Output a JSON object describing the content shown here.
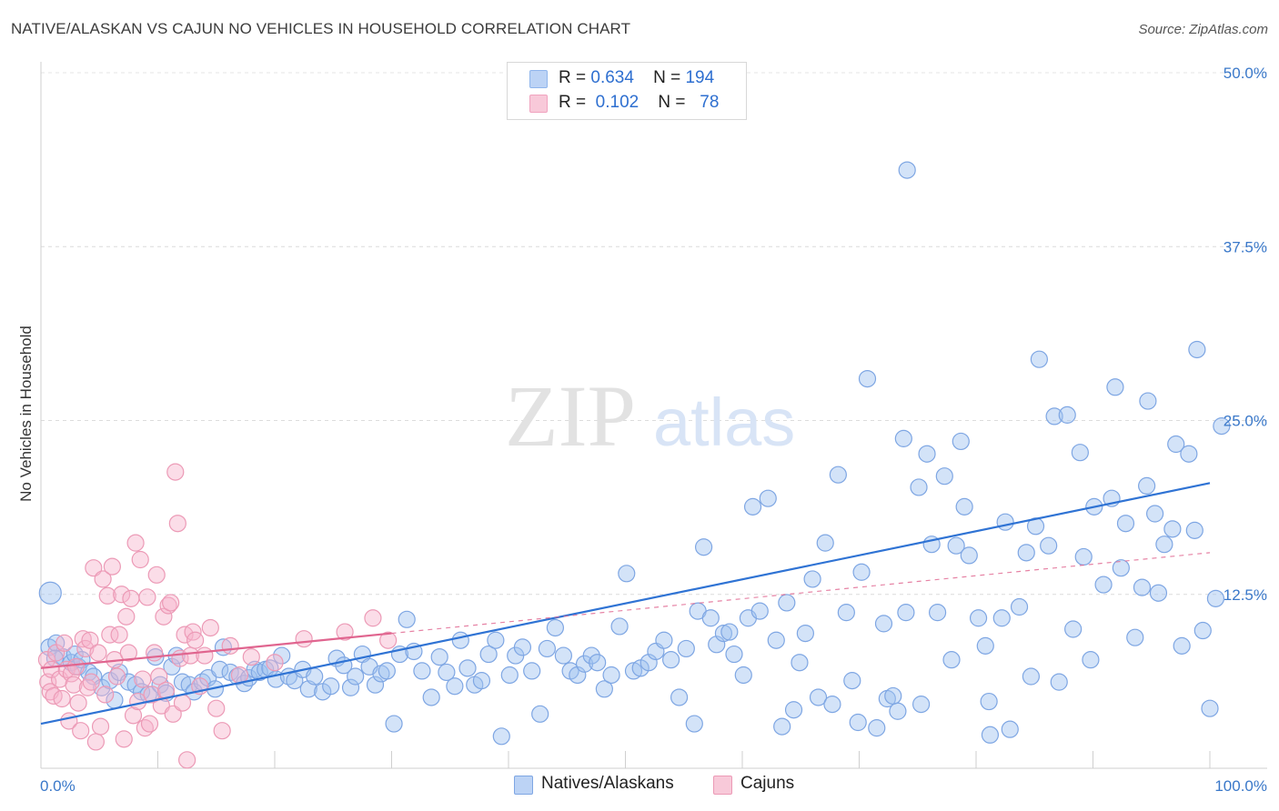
{
  "title": "NATIVE/ALASKAN VS CAJUN NO VEHICLES IN HOUSEHOLD CORRELATION CHART",
  "source": "Source: ZipAtlas.com",
  "watermark": {
    "part1": "ZIP",
    "part2": "atlas"
  },
  "legend": {
    "rows": [
      {
        "r_label": "R =",
        "r": "0.634",
        "n_label": "N =",
        "n": "194",
        "color": "#8fb5ec",
        "fill": "#bcd3f5"
      },
      {
        "r_label": "R =",
        "r": "0.102",
        "n_label": "N =",
        "n": "78",
        "color": "#f0a3bf",
        "fill": "#f8c9d9"
      }
    ]
  },
  "bottom_legend": [
    {
      "label": "Natives/Alaskans",
      "fill": "#bcd3f5",
      "stroke": "#7ea6e3"
    },
    {
      "label": "Cajuns",
      "fill": "#f8c9d9",
      "stroke": "#ec9ab6"
    }
  ],
  "chart_data": {
    "type": "scatter",
    "ylabel": "No Vehicles in Household",
    "xlim": [
      0,
      100
    ],
    "ylim": [
      0,
      50
    ],
    "y_ticks": [
      {
        "v": 12.5,
        "label": "12.5%"
      },
      {
        "v": 25,
        "label": "25.0%"
      },
      {
        "v": 37.5,
        "label": "37.5%"
      },
      {
        "v": 50,
        "label": "50.0%"
      }
    ],
    "x_ticks": [
      {
        "v": 0,
        "label": "0.0%"
      },
      {
        "v": 100,
        "label": "100.0%"
      }
    ],
    "grid": true,
    "series": [
      {
        "name": "Natives/Alaskans",
        "stroke": "#7ea6e3",
        "fill": "rgba(158,192,240,0.45)",
        "trend": {
          "x": [
            0,
            100
          ],
          "y": [
            3.2,
            20.5
          ],
          "color": "#2f73d4",
          "dashed_beyond": null
        },
        "points": [
          [
            0.8,
            12.6
          ],
          [
            0.7,
            8.7
          ],
          [
            1.3,
            9.0
          ],
          [
            1.9,
            8.0
          ],
          [
            1.2,
            7.9
          ],
          [
            2.6,
            7.6
          ],
          [
            2.9,
            8.2
          ],
          [
            3.2,
            7.3
          ],
          [
            3.5,
            7.8
          ],
          [
            4.1,
            6.9
          ],
          [
            4.5,
            6.6
          ],
          [
            5.2,
            5.8
          ],
          [
            5.9,
            6.3
          ],
          [
            6.3,
            4.9
          ],
          [
            6.7,
            6.9
          ],
          [
            7.5,
            6.2
          ],
          [
            8.1,
            6.0
          ],
          [
            8.6,
            5.5
          ],
          [
            9.2,
            5.3
          ],
          [
            9.8,
            8.0
          ],
          [
            10.2,
            6.0
          ],
          [
            10.7,
            5.4
          ],
          [
            11.2,
            7.3
          ],
          [
            11.6,
            8.1
          ],
          [
            12.1,
            6.2
          ],
          [
            12.7,
            6.0
          ],
          [
            13.1,
            5.5
          ],
          [
            13.8,
            6.2
          ],
          [
            14.3,
            6.5
          ],
          [
            14.9,
            5.7
          ],
          [
            15.3,
            7.1
          ],
          [
            15.6,
            8.7
          ],
          [
            16.2,
            6.9
          ],
          [
            16.8,
            6.6
          ],
          [
            17.4,
            6.1
          ],
          [
            17.8,
            6.5
          ],
          [
            18.3,
            7.1
          ],
          [
            18.7,
            6.9
          ],
          [
            19.2,
            7.1
          ],
          [
            19.6,
            7.2
          ],
          [
            20.1,
            6.4
          ],
          [
            20.6,
            8.1
          ],
          [
            21.2,
            6.6
          ],
          [
            21.7,
            6.3
          ],
          [
            22.4,
            7.1
          ],
          [
            22.9,
            5.7
          ],
          [
            23.4,
            6.6
          ],
          [
            24.1,
            5.5
          ],
          [
            24.8,
            5.9
          ],
          [
            25.3,
            7.9
          ],
          [
            25.9,
            7.4
          ],
          [
            26.5,
            5.8
          ],
          [
            26.9,
            6.6
          ],
          [
            27.5,
            8.2
          ],
          [
            28.1,
            7.3
          ],
          [
            28.6,
            6.0
          ],
          [
            29.1,
            6.8
          ],
          [
            29.6,
            7.0
          ],
          [
            30.2,
            3.2
          ],
          [
            30.7,
            8.2
          ],
          [
            31.3,
            10.7
          ],
          [
            31.9,
            8.4
          ],
          [
            32.6,
            7.0
          ],
          [
            33.4,
            5.1
          ],
          [
            34.1,
            8.0
          ],
          [
            34.7,
            6.9
          ],
          [
            35.4,
            5.9
          ],
          [
            35.9,
            9.2
          ],
          [
            36.5,
            7.2
          ],
          [
            37.1,
            6.0
          ],
          [
            37.7,
            6.3
          ],
          [
            38.3,
            8.2
          ],
          [
            38.9,
            9.2
          ],
          [
            39.4,
            2.3
          ],
          [
            40.1,
            6.7
          ],
          [
            40.6,
            8.1
          ],
          [
            41.2,
            8.7
          ],
          [
            42.0,
            7.0
          ],
          [
            42.7,
            3.9
          ],
          [
            43.3,
            8.6
          ],
          [
            44.0,
            10.1
          ],
          [
            44.7,
            8.1
          ],
          [
            45.3,
            7.0
          ],
          [
            45.9,
            6.7
          ],
          [
            46.5,
            7.5
          ],
          [
            47.1,
            8.1
          ],
          [
            47.6,
            7.6
          ],
          [
            48.2,
            5.7
          ],
          [
            48.8,
            6.7
          ],
          [
            49.5,
            10.2
          ],
          [
            50.1,
            14.0
          ],
          [
            50.7,
            7.0
          ],
          [
            51.3,
            7.2
          ],
          [
            52.0,
            7.6
          ],
          [
            52.6,
            8.4
          ],
          [
            53.3,
            9.2
          ],
          [
            53.9,
            7.8
          ],
          [
            54.6,
            5.1
          ],
          [
            55.2,
            8.6
          ],
          [
            55.9,
            3.2
          ],
          [
            56.2,
            11.3
          ],
          [
            56.7,
            15.9
          ],
          [
            57.3,
            10.8
          ],
          [
            57.8,
            8.9
          ],
          [
            58.4,
            9.7
          ],
          [
            58.9,
            9.8
          ],
          [
            59.3,
            8.2
          ],
          [
            60.1,
            6.7
          ],
          [
            60.5,
            10.8
          ],
          [
            60.9,
            18.8
          ],
          [
            61.5,
            11.3
          ],
          [
            62.2,
            19.4
          ],
          [
            62.9,
            9.2
          ],
          [
            63.4,
            3.0
          ],
          [
            63.8,
            11.9
          ],
          [
            64.4,
            4.2
          ],
          [
            64.9,
            7.6
          ],
          [
            65.4,
            9.7
          ],
          [
            66.0,
            13.6
          ],
          [
            66.5,
            5.1
          ],
          [
            67.1,
            16.2
          ],
          [
            67.7,
            4.6
          ],
          [
            68.2,
            21.1
          ],
          [
            68.9,
            11.2
          ],
          [
            69.4,
            6.3
          ],
          [
            69.9,
            3.3
          ],
          [
            70.2,
            14.1
          ],
          [
            70.7,
            28.0
          ],
          [
            71.5,
            2.9
          ],
          [
            72.1,
            10.4
          ],
          [
            72.4,
            5.0
          ],
          [
            72.9,
            5.2
          ],
          [
            73.3,
            4.1
          ],
          [
            74.0,
            11.2
          ],
          [
            73.8,
            23.7
          ],
          [
            74.1,
            43.0
          ],
          [
            75.1,
            20.2
          ],
          [
            75.3,
            4.6
          ],
          [
            75.8,
            22.6
          ],
          [
            76.2,
            16.1
          ],
          [
            76.7,
            11.2
          ],
          [
            77.3,
            21.0
          ],
          [
            77.9,
            7.8
          ],
          [
            78.3,
            16.0
          ],
          [
            78.7,
            23.5
          ],
          [
            79.0,
            18.8
          ],
          [
            79.4,
            15.3
          ],
          [
            80.2,
            10.8
          ],
          [
            80.8,
            8.8
          ],
          [
            81.1,
            4.8
          ],
          [
            81.2,
            2.4
          ],
          [
            82.2,
            10.8
          ],
          [
            82.5,
            17.7
          ],
          [
            82.9,
            2.8
          ],
          [
            83.7,
            11.6
          ],
          [
            84.3,
            15.5
          ],
          [
            84.7,
            6.6
          ],
          [
            85.1,
            17.4
          ],
          [
            85.4,
            29.4
          ],
          [
            86.2,
            16.0
          ],
          [
            86.7,
            25.3
          ],
          [
            87.1,
            6.2
          ],
          [
            87.8,
            25.4
          ],
          [
            88.3,
            10.0
          ],
          [
            88.9,
            22.7
          ],
          [
            89.2,
            15.2
          ],
          [
            89.8,
            7.8
          ],
          [
            90.1,
            18.8
          ],
          [
            90.9,
            13.2
          ],
          [
            91.6,
            19.4
          ],
          [
            91.9,
            27.4
          ],
          [
            92.4,
            14.4
          ],
          [
            92.8,
            17.6
          ],
          [
            93.6,
            9.4
          ],
          [
            94.2,
            13.0
          ],
          [
            94.6,
            20.3
          ],
          [
            94.7,
            26.4
          ],
          [
            95.3,
            18.3
          ],
          [
            95.6,
            12.6
          ],
          [
            96.1,
            16.1
          ],
          [
            96.8,
            17.2
          ],
          [
            97.1,
            23.3
          ],
          [
            97.6,
            8.8
          ],
          [
            98.2,
            22.6
          ],
          [
            98.7,
            17.1
          ],
          [
            98.9,
            30.1
          ],
          [
            99.4,
            9.9
          ],
          [
            100.0,
            4.3
          ],
          [
            100.5,
            12.2
          ],
          [
            101.0,
            24.6
          ]
        ]
      },
      {
        "name": "Cajuns",
        "stroke": "#ec9ab6",
        "fill": "rgba(246,180,204,0.45)",
        "trend": {
          "x": [
            0,
            30
          ],
          "y": [
            7.2,
            9.7
          ],
          "color": "#e0658f",
          "dash_to": [
            100,
            15.5
          ]
        },
        "points": [
          [
            0.5,
            7.8
          ],
          [
            0.6,
            6.2
          ],
          [
            0.8,
            5.5
          ],
          [
            0.9,
            7.1
          ],
          [
            1.1,
            5.2
          ],
          [
            1.3,
            8.3
          ],
          [
            1.6,
            6.4
          ],
          [
            1.8,
            5.0
          ],
          [
            2.0,
            9.0
          ],
          [
            2.2,
            7.1
          ],
          [
            2.4,
            3.4
          ],
          [
            2.6,
            6.8
          ],
          [
            2.8,
            6.0
          ],
          [
            3.0,
            7.3
          ],
          [
            3.2,
            4.7
          ],
          [
            3.4,
            2.7
          ],
          [
            3.6,
            9.3
          ],
          [
            3.8,
            8.6
          ],
          [
            4.0,
            5.8
          ],
          [
            4.2,
            9.2
          ],
          [
            4.3,
            6.2
          ],
          [
            4.5,
            14.4
          ],
          [
            4.7,
            1.9
          ],
          [
            4.9,
            8.3
          ],
          [
            5.1,
            3.0
          ],
          [
            5.3,
            13.6
          ],
          [
            5.5,
            5.3
          ],
          [
            5.7,
            12.4
          ],
          [
            5.9,
            9.6
          ],
          [
            6.1,
            14.5
          ],
          [
            6.3,
            7.8
          ],
          [
            6.5,
            6.6
          ],
          [
            6.7,
            9.6
          ],
          [
            6.9,
            12.5
          ],
          [
            7.1,
            2.1
          ],
          [
            7.3,
            10.9
          ],
          [
            7.5,
            8.3
          ],
          [
            7.7,
            12.2
          ],
          [
            7.9,
            3.8
          ],
          [
            8.1,
            16.2
          ],
          [
            8.3,
            4.8
          ],
          [
            8.5,
            15.0
          ],
          [
            8.7,
            6.4
          ],
          [
            8.9,
            2.9
          ],
          [
            9.1,
            12.3
          ],
          [
            9.3,
            3.2
          ],
          [
            9.5,
            5.3
          ],
          [
            9.7,
            8.3
          ],
          [
            9.9,
            13.9
          ],
          [
            10.1,
            6.6
          ],
          [
            10.3,
            4.5
          ],
          [
            10.5,
            10.9
          ],
          [
            10.7,
            5.6
          ],
          [
            10.9,
            11.7
          ],
          [
            11.1,
            11.9
          ],
          [
            11.3,
            3.9
          ],
          [
            11.5,
            21.3
          ],
          [
            11.7,
            17.6
          ],
          [
            11.9,
            7.9
          ],
          [
            12.1,
            4.7
          ],
          [
            12.3,
            9.6
          ],
          [
            12.5,
            0.6
          ],
          [
            12.8,
            8.1
          ],
          [
            13.0,
            9.8
          ],
          [
            13.2,
            9.2
          ],
          [
            13.6,
            5.9
          ],
          [
            14.0,
            8.1
          ],
          [
            14.5,
            10.1
          ],
          [
            15.0,
            4.3
          ],
          [
            15.5,
            2.7
          ],
          [
            16.2,
            8.8
          ],
          [
            17.0,
            6.7
          ],
          [
            18.0,
            8.0
          ],
          [
            20.0,
            7.6
          ],
          [
            22.5,
            9.3
          ],
          [
            26.0,
            9.8
          ],
          [
            28.4,
            10.8
          ],
          [
            29.7,
            9.2
          ]
        ]
      }
    ]
  }
}
